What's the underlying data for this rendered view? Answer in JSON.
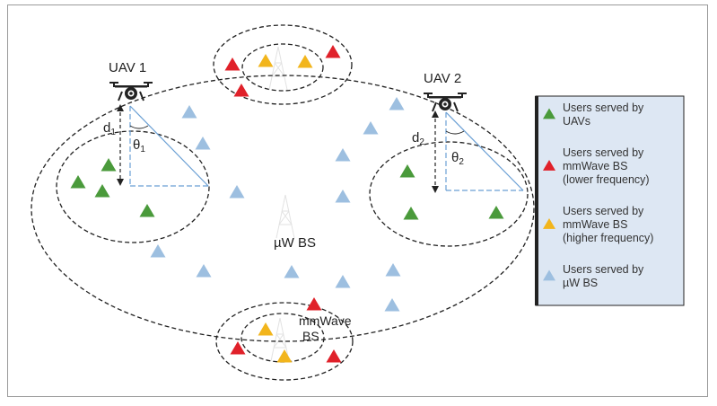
{
  "labels": {
    "uav1": "UAV 1",
    "uav2": "UAV 2",
    "d1": "d",
    "d1_sub": "1",
    "theta1": "θ",
    "theta1_sub": "1",
    "d2": "d",
    "d2_sub": "2",
    "theta2": "θ",
    "theta2_sub": "2",
    "uw_bs": "µW BS",
    "mmwave_line1": "mmWave",
    "mmwave_line2": "BS"
  },
  "legend": {
    "items": [
      {
        "lines": [
          "Users served by",
          "UAVs"
        ],
        "color": "#4a9a3b",
        "icon": "green-triangle-icon"
      },
      {
        "lines": [
          "Users served by",
          "mmWave BS",
          "(lower frequency)"
        ],
        "color": "#e0212a",
        "icon": "red-triangle-icon"
      },
      {
        "lines": [
          "Users served by",
          "mmWave BS",
          "(higher frequency)"
        ],
        "color": "#f2b51c",
        "icon": "yellow-triangle-icon"
      },
      {
        "lines": [
          "Users served by",
          "µW BS"
        ],
        "color": "#9dbfe0",
        "icon": "blue-triangle-icon"
      }
    ]
  },
  "colors": {
    "uav_user": "#4a9a3b",
    "mmwave_low": "#e0212a",
    "mmwave_high": "#f2b51c",
    "uw_user": "#9dbfe0",
    "legend_bg": "#dde7f3",
    "triangle_line": "#6a9fd4"
  }
}
